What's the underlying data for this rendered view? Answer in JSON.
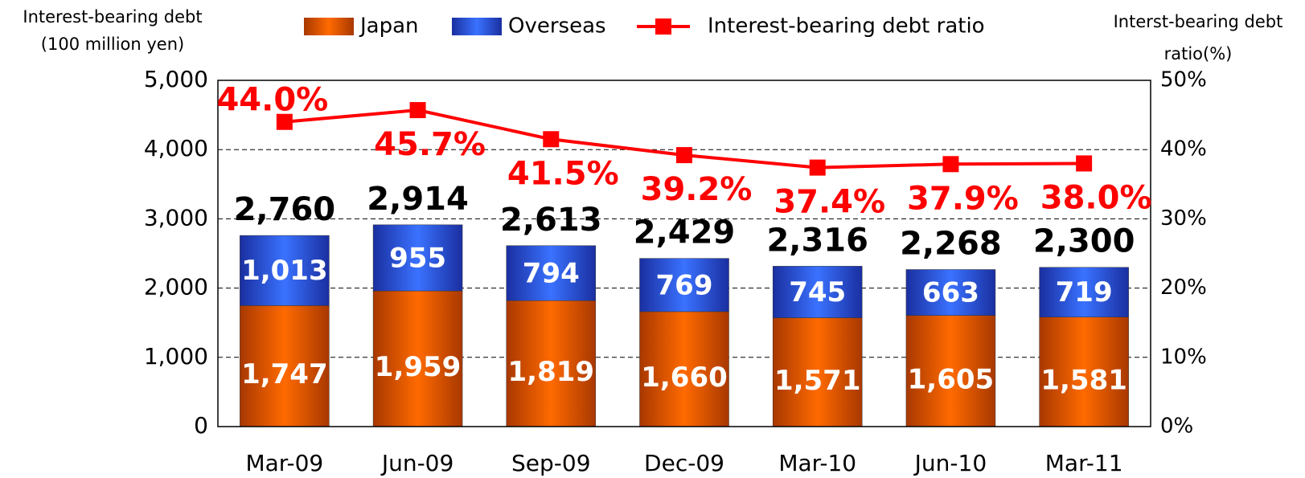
{
  "chart_data": {
    "type": "stacked_bar_line",
    "ylabel": [
      "Interest-bearing debt",
      "(100 million yen)"
    ],
    "y2label": [
      "Interst-bearing debt",
      "ratio(%)"
    ],
    "categories": [
      "Mar-09",
      "Jun-09",
      "Sep-09",
      "Dec-09",
      "Mar-10",
      "Jun-10",
      "Mar-11"
    ],
    "series": [
      {
        "name": "Japan",
        "color": "#ff6a00",
        "values": [
          1747,
          1959,
          1819,
          1660,
          1571,
          1605,
          1581
        ],
        "value_labels": [
          "1,747",
          "1,959",
          "1,819",
          "1,660",
          "1,571",
          "1,605",
          "1,581"
        ]
      },
      {
        "name": "Overseas",
        "color": "#3366ff",
        "values": [
          1013,
          955,
          794,
          769,
          745,
          663,
          719
        ],
        "value_labels": [
          "1,013",
          "955",
          "794",
          "769",
          "745",
          "663",
          "719"
        ]
      },
      {
        "name": "Interest-bearing debt ratio",
        "color": "#ff0000",
        "axis": "y2",
        "values": [
          44.0,
          45.7,
          41.5,
          39.2,
          37.4,
          37.9,
          38.0
        ],
        "value_labels": [
          "44.0%",
          "45.7%",
          "41.5%",
          "39.2%",
          "37.4%",
          "37.9%",
          "38.0%"
        ]
      }
    ],
    "total_value_labels": [
      "2,760",
      "2,914",
      "2,613",
      "2,429",
      "2,316",
      "2,268",
      "2,300"
    ],
    "ylim": [
      0,
      5000
    ],
    "yticks": [
      0,
      {
        "value": 1000,
        "label": "1,000"
      },
      {
        "value": 2000,
        "label": "2,000"
      },
      {
        "value": 3000,
        "label": "3,000"
      },
      {
        "value": 4000,
        "label": "4,000"
      },
      {
        "value": 5000,
        "label": "5,000"
      }
    ],
    "y2lim": [
      0,
      50
    ],
    "y2ticks": [
      {
        "value": 0,
        "label": "0%"
      },
      {
        "value": 10,
        "label": "10%"
      },
      {
        "value": 20,
        "label": "20%"
      },
      {
        "value": 30,
        "label": "30%"
      },
      {
        "value": 40,
        "label": "40%"
      },
      {
        "value": 50,
        "label": "50%"
      }
    ],
    "grid": true
  }
}
